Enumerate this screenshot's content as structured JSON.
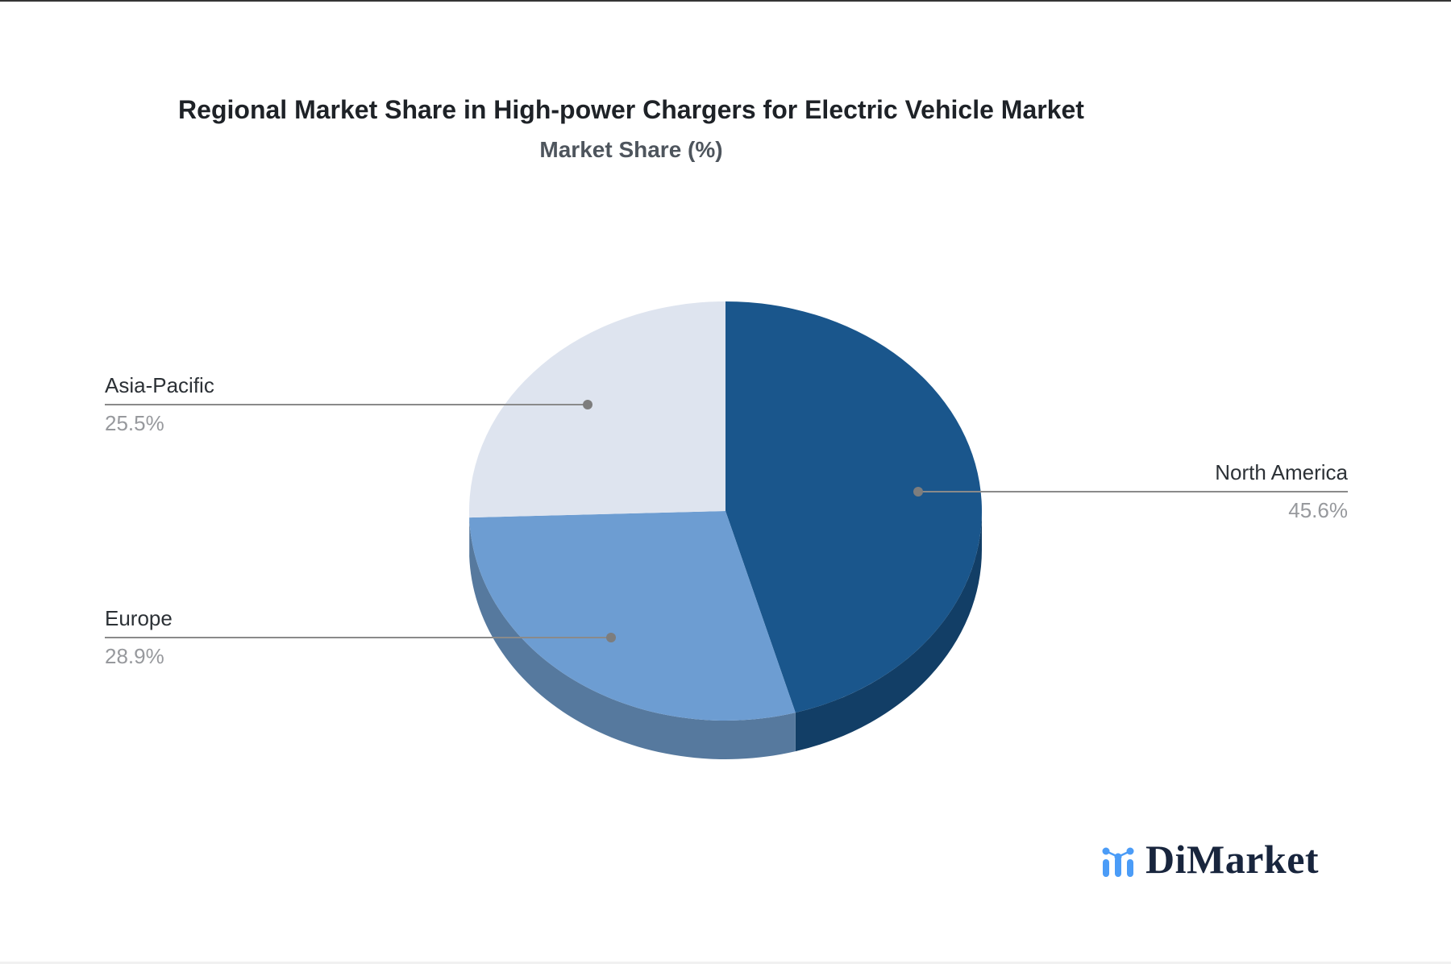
{
  "chart_data": {
    "type": "pie",
    "style": "3d",
    "title": "Regional Market Share in High-power Chargers for Electric Vehicle Market",
    "subtitle": "Market Share (%)",
    "unit": "%",
    "start_angle_deg": 0,
    "direction": "clockwise",
    "legend": "none",
    "labels": [
      "North America",
      "Europe",
      "Asia-Pacific"
    ],
    "values": [
      45.6,
      28.9,
      25.5
    ],
    "value_labels": [
      "45.6%",
      "28.9%",
      "25.5%"
    ],
    "colors": [
      "#1A568C",
      "#6D9DD2",
      "#DEE4EF"
    ],
    "side_colors": [
      "#123E66",
      "#56799E",
      "#B9C3D5"
    ],
    "callout_line_color": "#8A8A8A",
    "callout_dot_color": "#7D7D7D",
    "label_text_color": "#2C3136",
    "value_text_color": "#97999D"
  },
  "branding": {
    "logo_text": "DiMarket",
    "logo_icon": "bar-line-chart-icon",
    "logo_color": "#4B9CF7",
    "text_color": "#18253D"
  }
}
